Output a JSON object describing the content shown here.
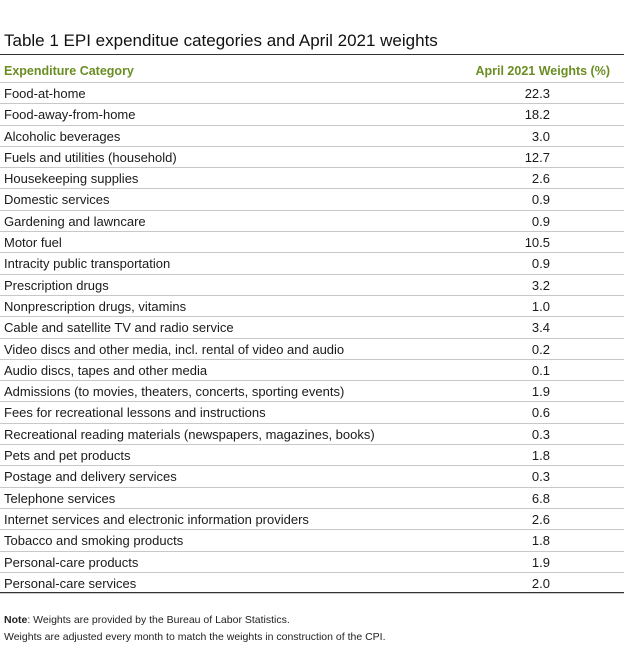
{
  "title": "Table 1 EPI expenditue categories and April 2021 weights",
  "header": {
    "category": "Expenditure Category",
    "weights": "April 2021 Weights (%)"
  },
  "rows": [
    {
      "category": "Food-at-home",
      "weight": "22.3"
    },
    {
      "category": "Food-away-from-home",
      "weight": "18.2"
    },
    {
      "category": "Alcoholic beverages",
      "weight": "3.0"
    },
    {
      "category": "Fuels and utilities (household)",
      "weight": "12.7"
    },
    {
      "category": "Housekeeping supplies",
      "weight": "2.6"
    },
    {
      "category": "Domestic services",
      "weight": "0.9"
    },
    {
      "category": "Gardening and lawncare",
      "weight": "0.9"
    },
    {
      "category": "Motor fuel",
      "weight": "10.5"
    },
    {
      "category": "Intracity public transportation",
      "weight": "0.9"
    },
    {
      "category": "Prescription drugs",
      "weight": "3.2"
    },
    {
      "category": "Nonprescription drugs, vitamins",
      "weight": "1.0"
    },
    {
      "category": "Cable and satellite TV and radio service",
      "weight": "3.4"
    },
    {
      "category": "Video discs and other media, incl. rental of video and audio",
      "weight": "0.2"
    },
    {
      "category": "Audio discs, tapes and other media",
      "weight": "0.1"
    },
    {
      "category": "Admissions (to movies, theaters, concerts, sporting events)",
      "weight": "1.9"
    },
    {
      "category": "Fees for recreational lessons and instructions",
      "weight": "0.6"
    },
    {
      "category": "Recreational reading materials (newspapers, magazines, books)",
      "weight": "0.3"
    },
    {
      "category": "Pets and pet products",
      "weight": "1.8"
    },
    {
      "category": "Postage and delivery services",
      "weight": "0.3"
    },
    {
      "category": "Telephone services",
      "weight": "6.8"
    },
    {
      "category": "Internet services and electronic information providers",
      "weight": "2.6"
    },
    {
      "category": "Tobacco and smoking products",
      "weight": "1.8"
    },
    {
      "category": "Personal-care products",
      "weight": "1.9"
    },
    {
      "category": "Personal-care services",
      "weight": "2.0"
    }
  ],
  "notes": {
    "label": "Note",
    "line1": ": Weights are provided by the Bureau of Labor Statistics.",
    "line2": "Weights are adjusted every month to match the weights in construction of the CPI."
  },
  "colors": {
    "header_text": "#6b8e23",
    "rule": "#333333",
    "row_divider": "#c8c8c8"
  }
}
